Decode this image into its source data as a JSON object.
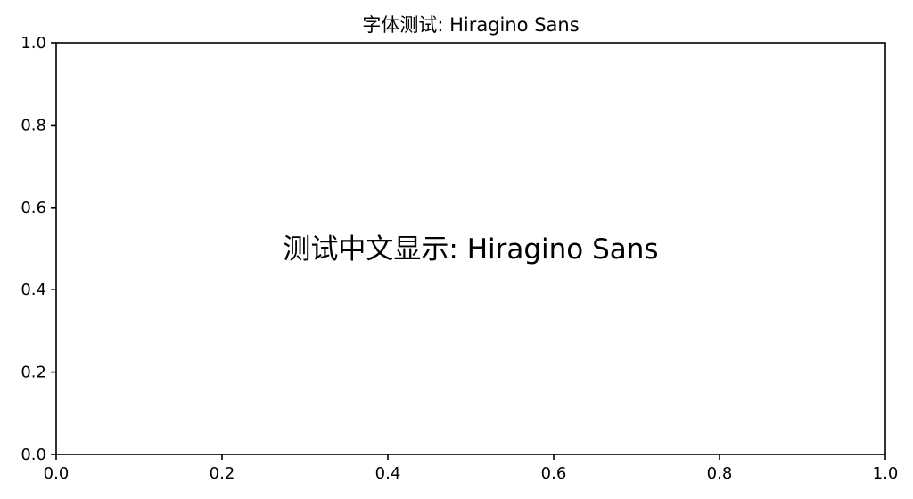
{
  "chart_data": {
    "type": "scatter",
    "title": "字体测试: Hiragino Sans",
    "xlabel": "",
    "ylabel": "",
    "xlim": [
      0.0,
      1.0
    ],
    "ylim": [
      0.0,
      1.0
    ],
    "x_ticks": [
      "0.0",
      "0.2",
      "0.4",
      "0.6",
      "0.8",
      "1.0"
    ],
    "y_ticks": [
      "0.0",
      "0.2",
      "0.4",
      "0.6",
      "0.8",
      "1.0"
    ],
    "grid": false,
    "annotations": [
      {
        "text": "测试中文显示: Hiragino Sans",
        "x": 0.5,
        "y": 0.5
      }
    ],
    "series": []
  }
}
